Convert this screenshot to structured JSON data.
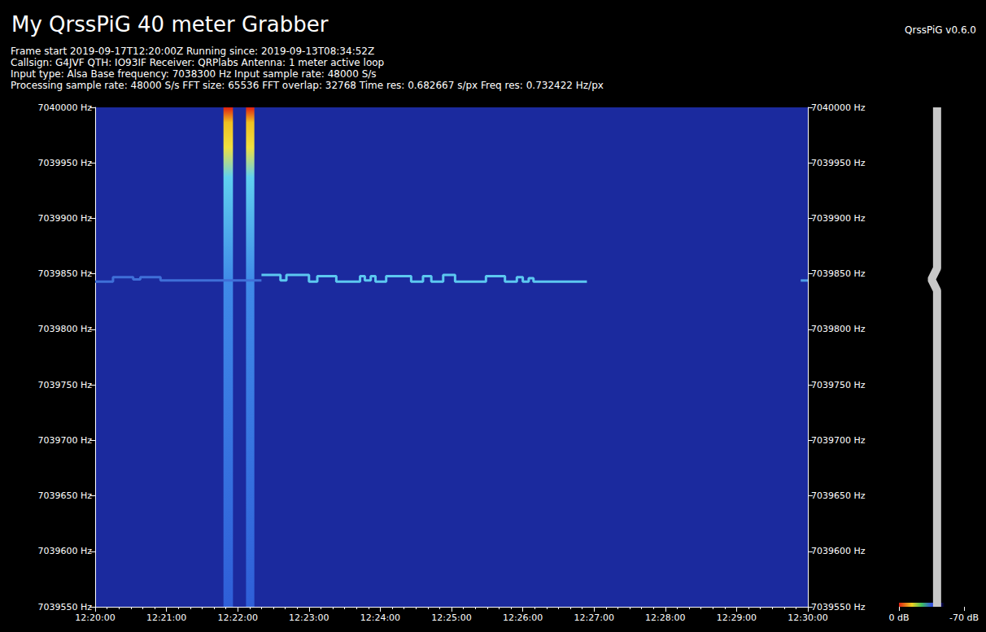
{
  "chart_data": {
    "type": "spectrogram",
    "title": "My QrssPiG 40 meter Grabber",
    "subtitle": [
      "Frame start 2019-09-17T12:20:00Z Running since: 2019-09-13T08:34:52Z",
      "Callsign: G4JVF QTH: IO93IF Receiver: QRPlabs Antenna: 1 meter active loop",
      "Input type: Alsa Base frequency: 7038300 Hz Input sample rate: 48000 S/s",
      "Processing sample rate: 48000 S/s FFT size: 65536 FFT overlap: 32768 Time res: 0.682667 s/px Freq res: 0.732422 Hz/px"
    ],
    "annotations": [
      "QrssPiG v0.6.0"
    ],
    "xlim": [
      44400,
      45000
    ],
    "xticks": [
      {
        "value": 44400,
        "label": "12:20:00"
      },
      {
        "value": 44460,
        "label": "12:21:00"
      },
      {
        "value": 44520,
        "label": "12:22:00"
      },
      {
        "value": 44580,
        "label": "12:23:00"
      },
      {
        "value": 44640,
        "label": "12:24:00"
      },
      {
        "value": 44700,
        "label": "12:25:00"
      },
      {
        "value": 44760,
        "label": "12:26:00"
      },
      {
        "value": 44820,
        "label": "12:27:00"
      },
      {
        "value": 44880,
        "label": "12:28:00"
      },
      {
        "value": 44940,
        "label": "12:29:00"
      },
      {
        "value": 45000,
        "label": "12:30:00"
      }
    ],
    "ylim": [
      7039550,
      7040000
    ],
    "yticks": [
      {
        "value": 7039550,
        "label": "7039550 Hz"
      },
      {
        "value": 7039600,
        "label": "7039600 Hz"
      },
      {
        "value": 7039650,
        "label": "7039650 Hz"
      },
      {
        "value": 7039700,
        "label": "7039700 Hz"
      },
      {
        "value": 7039750,
        "label": "7039750 Hz"
      },
      {
        "value": 7039800,
        "label": "7039800 Hz"
      },
      {
        "value": 7039850,
        "label": "7039850 Hz"
      },
      {
        "value": 7039900,
        "label": "7039900 Hz"
      },
      {
        "value": 7039950,
        "label": "7039950 Hz"
      },
      {
        "value": 7040000,
        "label": "7040000 Hz"
      }
    ],
    "y2lim": [
      7039550,
      7040000
    ],
    "y2ticks": [
      {
        "value": 7039550,
        "label": "7039550 Hz"
      },
      {
        "value": 7039600,
        "label": "7039600 Hz"
      },
      {
        "value": 7039650,
        "label": "7039650 Hz"
      },
      {
        "value": 7039700,
        "label": "7039700 Hz"
      },
      {
        "value": 7039750,
        "label": "7039750 Hz"
      },
      {
        "value": 7039800,
        "label": "7039800 Hz"
      },
      {
        "value": 7039850,
        "label": "7039850 Hz"
      },
      {
        "value": 7039900,
        "label": "7039900 Hz"
      },
      {
        "value": 7039950,
        "label": "7039950 Hz"
      },
      {
        "value": 7040000,
        "label": "7040000 Hz"
      }
    ],
    "series": [
      {
        "color": "#3f6fd8",
        "x": [
          44400,
          44415,
          44432,
          44438,
          44455,
          44540
        ],
        "values": [
          7039843,
          7039847,
          7039845,
          7039847,
          7039844,
          7039844
        ]
      },
      {
        "color": "#5cc8f0",
        "x": [
          44540,
          44556,
          44561,
          44580,
          44587,
          44603,
          44623,
          44627,
          44632,
          44636,
          44645,
          44666,
          44676,
          44683,
          44693,
          44703,
          44729,
          44745,
          44755,
          44760,
          44765,
          44769,
          44814
        ],
        "values": [
          7039849,
          7039844,
          7039849,
          7039843,
          7039848,
          7039843,
          7039848,
          7039844,
          7039848,
          7039843,
          7039848,
          7039843,
          7039848,
          7039843,
          7039849,
          7039843,
          7039848,
          7039843,
          7039847,
          7039843,
          7039846,
          7039843,
          7039843
        ]
      },
      {
        "color": "#4f9fe8",
        "x": [
          44994,
          45000
        ],
        "values": [
          7039844,
          7039844
        ]
      }
    ],
    "bursts": [
      [
        44508,
        44516
      ],
      [
        44527,
        44534
      ]
    ],
    "spectrum": {
      "range": [
        0,
        -70
      ],
      "ticks": [
        {
          "value": 0,
          "label": "0 dB"
        },
        {
          "value": -70,
          "label": "-70 dB"
        }
      ],
      "frequencies": [
        7039550,
        7039600,
        7039650,
        7039700,
        7039750,
        7039800,
        7039835,
        7039845,
        7039855,
        7039900,
        7039950,
        7040000
      ],
      "levels": [
        -41,
        -41,
        -41,
        -41,
        -41,
        -41,
        -41,
        -35,
        -41,
        -41,
        -41,
        -41
      ]
    },
    "grid": false
  }
}
